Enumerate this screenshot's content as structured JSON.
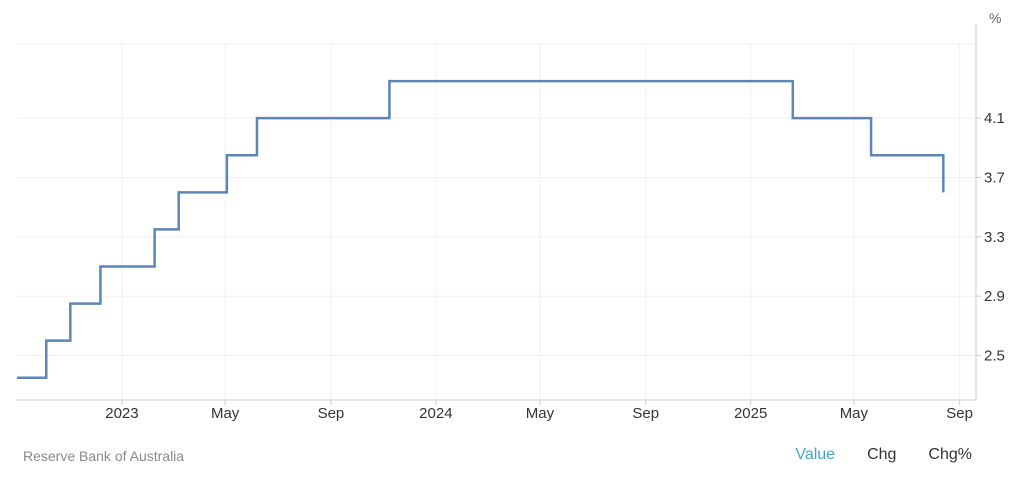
{
  "chart_data": {
    "type": "line",
    "step": true,
    "unit": "%",
    "x_ticks": [
      "2023",
      "May",
      "Sep",
      "2024",
      "May",
      "Sep",
      "2025",
      "May",
      "Sep"
    ],
    "y_ticks": [
      "2.5",
      "2.9",
      "3.3",
      "3.7",
      "4.1"
    ],
    "ylim": [
      2.2,
      4.6
    ],
    "xlim": [
      "2022-09-01",
      "2025-09-20"
    ],
    "y_axis_position": "right",
    "grid": true,
    "series": [
      {
        "color": "#5b86b5",
        "points": [
          {
            "date": "2022-09-01",
            "value": 2.35
          },
          {
            "date": "2022-10-05",
            "value": 2.6
          },
          {
            "date": "2022-11-02",
            "value": 2.85
          },
          {
            "date": "2022-12-07",
            "value": 3.1
          },
          {
            "date": "2023-02-08",
            "value": 3.35
          },
          {
            "date": "2023-03-08",
            "value": 3.6
          },
          {
            "date": "2023-05-03",
            "value": 3.85
          },
          {
            "date": "2023-06-07",
            "value": 4.1
          },
          {
            "date": "2023-11-08",
            "value": 4.35
          },
          {
            "date": "2025-02-19",
            "value": 4.1
          },
          {
            "date": "2025-05-21",
            "value": 3.85
          },
          {
            "date": "2025-08-13",
            "value": 3.6
          }
        ],
        "end_date": "2025-08-13"
      }
    ]
  },
  "footer": {
    "source": "Reserve Bank of Australia",
    "tabs": [
      {
        "label": "Value",
        "active": true
      },
      {
        "label": "Chg",
        "active": false
      },
      {
        "label": "Chg%",
        "active": false
      }
    ]
  }
}
